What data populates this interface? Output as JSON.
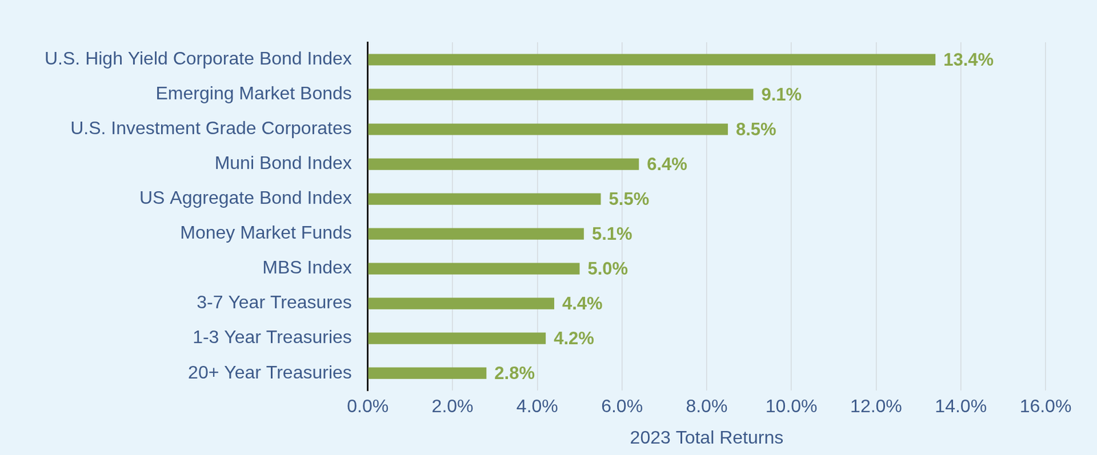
{
  "chart_data": {
    "type": "bar",
    "orientation": "horizontal",
    "categories": [
      "U.S. High Yield Corporate Bond Index",
      "Emerging Market Bonds",
      "U.S. Investment Grade Corporates",
      "Muni Bond Index",
      "US Aggregate Bond Index",
      "Money Market Funds",
      "MBS Index",
      "3-7 Year Treasures",
      "1-3 Year Treasuries",
      "20+ Year Treasuries"
    ],
    "values": [
      13.4,
      9.1,
      8.5,
      6.4,
      5.5,
      5.1,
      5.0,
      4.4,
      4.2,
      2.8
    ],
    "value_labels": [
      "13.4%",
      "9.1%",
      "8.5%",
      "6.4%",
      "5.5%",
      "5.1%",
      "5.0%",
      "4.4%",
      "4.2%",
      "2.8%"
    ],
    "color": "#8aa84b",
    "x_label": "2023 Total Returns",
    "xlim": [
      0,
      16
    ],
    "xticks": [
      {
        "value": 0,
        "label": "0.0%"
      },
      {
        "value": 2,
        "label": "2.0%"
      },
      {
        "value": 4,
        "label": "4.0%"
      },
      {
        "value": 6,
        "label": "6.0%"
      },
      {
        "value": 8,
        "label": "8.0%"
      },
      {
        "value": 10,
        "label": "10.0%"
      },
      {
        "value": 12,
        "label": "12.0%"
      },
      {
        "value": 14,
        "label": "14.0%"
      },
      {
        "value": 16,
        "label": "16.0%"
      }
    ],
    "grid": true,
    "data_labels": true
  }
}
